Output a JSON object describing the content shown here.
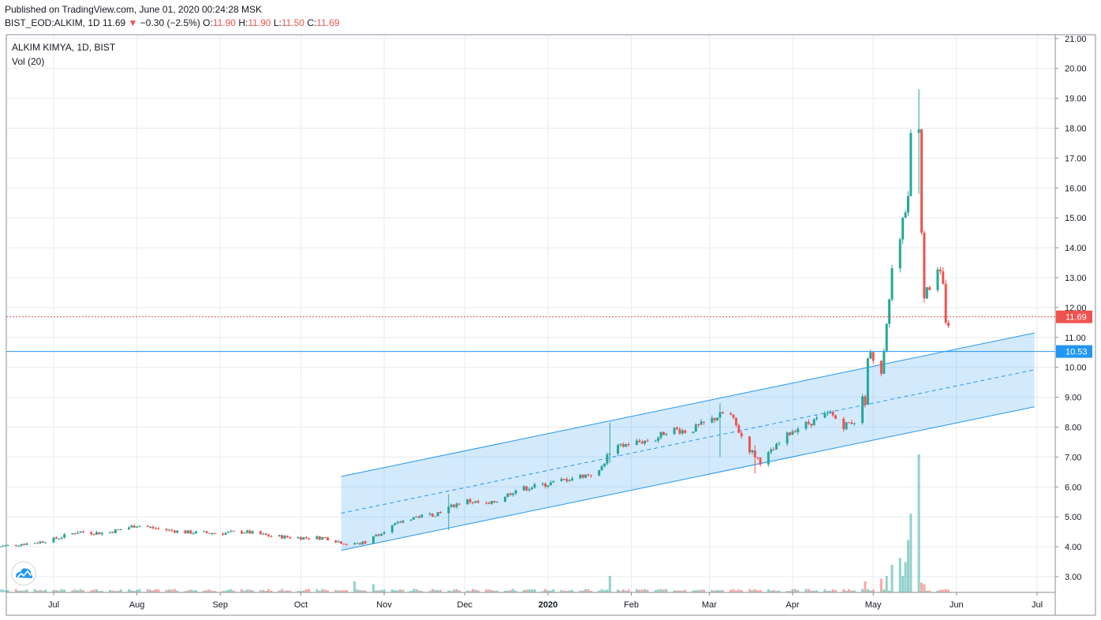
{
  "header": {
    "published": "Published on TradingView.com, June 01, 2020 00:24:28 MSK",
    "symbol": "BIST_EOD:ALKIM, 1D",
    "last": "11.69",
    "change_arrow": "▼",
    "change": "−0.30 (−2.5%)",
    "o_label": "O:",
    "o_val": "11.90",
    "h_label": "H:",
    "h_val": "11.90",
    "l_label": "L:",
    "l_val": "11.50",
    "c_label": "C:",
    "c_val": "11.69"
  },
  "legend": {
    "title": "ALKIM KIMYA, 1D, BIST",
    "vol": "Vol (20)"
  },
  "price_tags": {
    "last": "11.69",
    "line": "10.53"
  },
  "colors": {
    "up": "#26a69a",
    "down": "#ef5350",
    "channel": "#2196f3",
    "grid": "#e6ecf2"
  },
  "icons": {
    "logo": "tradingview-cloud-icon"
  },
  "chart_data": {
    "type": "candlestick",
    "title": "ALKIM KIMYA, 1D, BIST",
    "y_ticks": [
      "21.00",
      "20.00",
      "19.00",
      "18.00",
      "17.00",
      "16.00",
      "15.00",
      "14.00",
      "13.00",
      "12.00",
      "11.00",
      "10.00",
      "9.00",
      "8.00",
      "7.00",
      "6.00",
      "5.00",
      "4.00",
      "3.00"
    ],
    "ylim": [
      2.5,
      21.2
    ],
    "x_ticks": [
      "Jul",
      "Aug",
      "Sep",
      "Oct",
      "Nov",
      "Dec",
      "2020",
      "Feb",
      "Mar",
      "Apr",
      "May",
      "Jun",
      "Jul"
    ],
    "x_tick_dates": [
      "2019-07-01",
      "2019-08-01",
      "2019-09-01",
      "2019-10-01",
      "2019-11-01",
      "2019-12-01",
      "2020-01-01",
      "2020-02-01",
      "2020-03-01",
      "2020-04-01",
      "2020-05-01",
      "2020-06-01",
      "2020-07-01"
    ],
    "horizontal_line": 10.53,
    "last_price_line": 11.69,
    "channel": {
      "start_date": "2019-10-16",
      "end_date": "2020-06-30",
      "upper": [
        6.35,
        11.15
      ],
      "middle": [
        5.12,
        9.92
      ],
      "lower": [
        3.88,
        8.68
      ]
    },
    "price_path": [
      [
        "2019-06-10",
        4.0
      ],
      [
        "2019-06-25",
        4.15
      ],
      [
        "2019-07-01",
        4.25
      ],
      [
        "2019-07-10",
        4.5
      ],
      [
        "2019-07-20",
        4.45
      ],
      [
        "2019-08-01",
        4.72
      ],
      [
        "2019-08-10",
        4.58
      ],
      [
        "2019-08-20",
        4.48
      ],
      [
        "2019-09-01",
        4.45
      ],
      [
        "2019-09-10",
        4.5
      ],
      [
        "2019-09-20",
        4.35
      ],
      [
        "2019-10-01",
        4.3
      ],
      [
        "2019-10-10",
        4.3
      ],
      [
        "2019-10-20",
        4.05
      ],
      [
        "2019-10-25",
        4.15
      ],
      [
        "2019-11-01",
        4.55
      ],
      [
        "2019-11-10",
        4.95
      ],
      [
        "2019-11-20",
        5.1
      ],
      [
        "2019-12-01",
        5.55
      ],
      [
        "2019-12-10",
        5.4
      ],
      [
        "2019-12-20",
        5.9
      ],
      [
        "2020-01-01",
        6.1
      ],
      [
        "2020-01-10",
        6.3
      ],
      [
        "2020-01-20",
        6.5
      ],
      [
        "2020-01-24",
        7.2
      ],
      [
        "2020-01-31",
        7.45
      ],
      [
        "2020-02-10",
        7.6
      ],
      [
        "2020-02-15",
        7.95
      ],
      [
        "2020-02-22",
        7.85
      ],
      [
        "2020-03-01",
        8.2
      ],
      [
        "2020-03-08",
        8.55
      ],
      [
        "2020-03-15",
        7.35
      ],
      [
        "2020-03-20",
        6.85
      ],
      [
        "2020-03-25",
        7.25
      ],
      [
        "2020-04-01",
        7.9
      ],
      [
        "2020-04-10",
        8.25
      ],
      [
        "2020-04-15",
        8.45
      ],
      [
        "2020-04-20",
        8.05
      ],
      [
        "2020-04-25",
        8.25
      ],
      [
        "2020-04-28",
        9.3
      ],
      [
        "2020-05-01",
        10.2
      ],
      [
        "2020-05-04",
        9.6
      ],
      [
        "2020-05-06",
        11.0
      ],
      [
        "2020-05-08",
        12.5
      ],
      [
        "2020-05-11",
        14.2
      ],
      [
        "2020-05-13",
        15.8
      ],
      [
        "2020-05-15",
        17.3
      ],
      [
        "2020-05-18",
        18.6
      ],
      [
        "2020-05-19",
        15.0
      ],
      [
        "2020-05-20",
        13.0
      ],
      [
        "2020-05-22",
        13.2
      ],
      [
        "2020-05-26",
        12.4
      ],
      [
        "2020-05-28",
        11.99
      ],
      [
        "2020-05-29",
        11.69
      ]
    ],
    "spikes": [
      {
        "date": "2019-11-25",
        "low": 4.55,
        "high": 5.75
      },
      {
        "date": "2020-01-24",
        "low": 6.8,
        "high": 8.15
      },
      {
        "date": "2020-03-05",
        "low": 7.0,
        "high": 8.8
      },
      {
        "date": "2020-03-18",
        "low": 6.45,
        "high": 7.4
      },
      {
        "date": "2020-05-18",
        "low": 15.8,
        "high": 19.3
      },
      {
        "date": "2020-05-15",
        "low": 16.8,
        "high": 17.55
      }
    ],
    "volume": {
      "label": "Vol (20)",
      "spikes": [
        {
          "date": "2019-10-21",
          "ratio": 0.08
        },
        {
          "date": "2019-10-28",
          "ratio": 0.06
        },
        {
          "date": "2020-01-24",
          "ratio": 0.12
        },
        {
          "date": "2020-04-28",
          "ratio": 0.08
        },
        {
          "date": "2020-05-04",
          "ratio": 0.1
        },
        {
          "date": "2020-05-06",
          "ratio": 0.12
        },
        {
          "date": "2020-05-08",
          "ratio": 0.2
        },
        {
          "date": "2020-05-11",
          "ratio": 0.25
        },
        {
          "date": "2020-05-12",
          "ratio": 0.12
        },
        {
          "date": "2020-05-13",
          "ratio": 0.22
        },
        {
          "date": "2020-05-14",
          "ratio": 0.38
        },
        {
          "date": "2020-05-15",
          "ratio": 0.57
        },
        {
          "date": "2020-05-18",
          "ratio": 1.0
        },
        {
          "date": "2020-05-19",
          "ratio": 0.07
        },
        {
          "date": "2020-05-20",
          "ratio": 0.06
        }
      ]
    }
  }
}
